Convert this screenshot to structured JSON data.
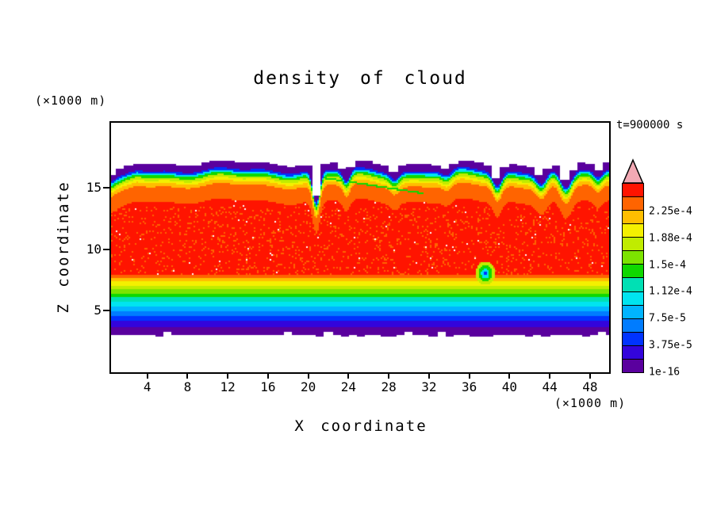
{
  "chart_data": {
    "type": "heatmap",
    "title": "density of cloud",
    "xlabel": "X coordinate",
    "ylabel": "Z coordinate",
    "x_unit": "(×1000 m)",
    "y_unit": "(×1000 m)",
    "time_label": "t=900000 s",
    "x_ticks": [
      4,
      8,
      12,
      16,
      20,
      24,
      28,
      32,
      36,
      40,
      44,
      48
    ],
    "y_ticks": [
      5,
      10,
      15
    ],
    "xlim": [
      0.4,
      49.9
    ],
    "ylim": [
      0,
      20.3
    ],
    "grid": false,
    "palette": [
      "#5A009E",
      "#3304DC",
      "#0033FF",
      "#007CFF",
      "#00B4FF",
      "#00E4F0",
      "#00E0B4",
      "#0FD800",
      "#7CE400",
      "#C0EC00",
      "#F4F000",
      "#FFBE00",
      "#FF6400",
      "#FF1400"
    ],
    "overflow_arrow_color": "#F2A9B4",
    "colorbar_labels": [
      {
        "text": "1e-16",
        "step": 0
      },
      {
        "text": "3.75e-5",
        "step": 2
      },
      {
        "text": "7.5e-5",
        "step": 4
      },
      {
        "text": "1.12e-4",
        "step": 6
      },
      {
        "text": "1.5e-4",
        "step": 8
      },
      {
        "text": "1.88e-4",
        "step": 10
      },
      {
        "text": "2.25e-4",
        "step": 12
      }
    ],
    "field": {
      "z_bottom": 3.0,
      "ramp_span": 5.25,
      "top_base": 16.55,
      "cap_thickness": 0.45,
      "cap_overlap": 0.12,
      "wiggle": [
        {
          "amp": 0.18,
          "freq": 0.55,
          "phase": 1.0
        },
        {
          "amp": 0.1,
          "freq": 1.3,
          "phase": 0.0
        }
      ],
      "left_droop": {
        "start": 3.0,
        "slope": 0.45
      },
      "plumes": [
        {
          "x": 20.8,
          "depth": 2.7,
          "width": 0.5
        },
        {
          "x": 23.8,
          "depth": 1.0,
          "width": 0.5
        },
        {
          "x": 28.6,
          "depth": 0.55,
          "width": 0.55
        },
        {
          "x": 33.8,
          "depth": 0.5,
          "width": 0.7
        },
        {
          "x": 38.8,
          "depth": 1.25,
          "width": 0.6
        },
        {
          "x": 43.2,
          "depth": 1.0,
          "width": 0.7
        },
        {
          "x": 45.6,
          "depth": 1.6,
          "width": 0.8
        },
        {
          "x": 48.8,
          "depth": 0.7,
          "width": 0.6
        }
      ],
      "top_bands": [
        [
          0.3,
          2
        ],
        [
          0.46,
          5
        ],
        [
          0.66,
          7
        ],
        [
          0.88,
          9
        ],
        [
          1.08,
          10
        ],
        [
          1.38,
          11
        ],
        [
          2.65,
          12
        ],
        [
          99,
          13
        ]
      ],
      "vortex": {
        "x": 37.6,
        "z": 8.05,
        "rings": [
          [
            0.18,
            2
          ],
          [
            0.4,
            5
          ],
          [
            0.65,
            7
          ],
          [
            0.95,
            9
          ]
        ]
      },
      "streak": {
        "x1": 21.3,
        "z1": 15.85,
        "x2": 31.5,
        "z2": 14.55,
        "half_width": 0.07,
        "color_index": 7
      },
      "speckle": {
        "white_threshold": 0.994,
        "orange_threshold": 0.9,
        "z_min": 6.5,
        "z_max": 13.5
      }
    }
  }
}
